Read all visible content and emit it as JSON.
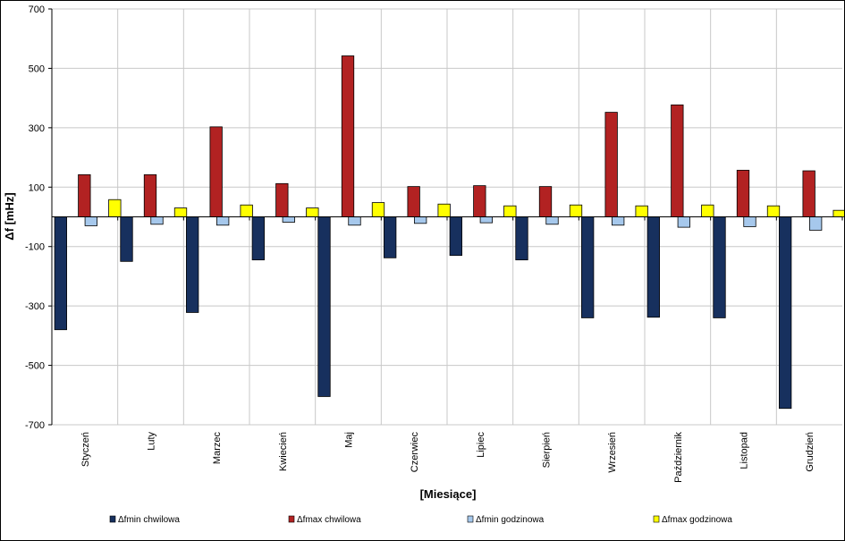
{
  "chart_data": {
    "type": "bar",
    "ylabel": "Δf [mHz]",
    "xlabel": "[Miesiące]",
    "ylim": [
      -700,
      700
    ],
    "yticks": [
      700,
      500,
      300,
      100,
      -100,
      -300,
      -500,
      -700
    ],
    "grid": true,
    "legend_position": "bottom",
    "categories": [
      "Styczeń",
      "Luty",
      "Marzec",
      "Kwiecień",
      "Maj",
      "Czerwiec",
      "Lipiec",
      "Sierpień",
      "Wrzesień",
      "Październik",
      "Listopad",
      "Grudzień"
    ],
    "series": [
      {
        "name": "Δfmin chwilowa",
        "color": "#17305e",
        "values": [
          -380,
          -150,
          -322,
          -145,
          -605,
          -138,
          -130,
          -145,
          -340,
          -338,
          -340,
          -645
        ]
      },
      {
        "name": "Δfmax chwilowa",
        "color": "#b22222",
        "values": [
          142,
          142,
          303,
          112,
          542,
          102,
          105,
          102,
          352,
          377,
          157,
          155
        ]
      },
      {
        "name": "Δfmin godzinowa",
        "color": "#a6c8ec",
        "values": [
          -30,
          -25,
          -28,
          -18,
          -28,
          -22,
          -20,
          -25,
          -28,
          -35,
          -33,
          -45
        ]
      },
      {
        "name": "Δfmax godzinowa",
        "color": "#ffff00",
        "values": [
          58,
          30,
          40,
          30,
          48,
          43,
          37,
          40,
          37,
          40,
          37,
          22
        ]
      }
    ]
  }
}
